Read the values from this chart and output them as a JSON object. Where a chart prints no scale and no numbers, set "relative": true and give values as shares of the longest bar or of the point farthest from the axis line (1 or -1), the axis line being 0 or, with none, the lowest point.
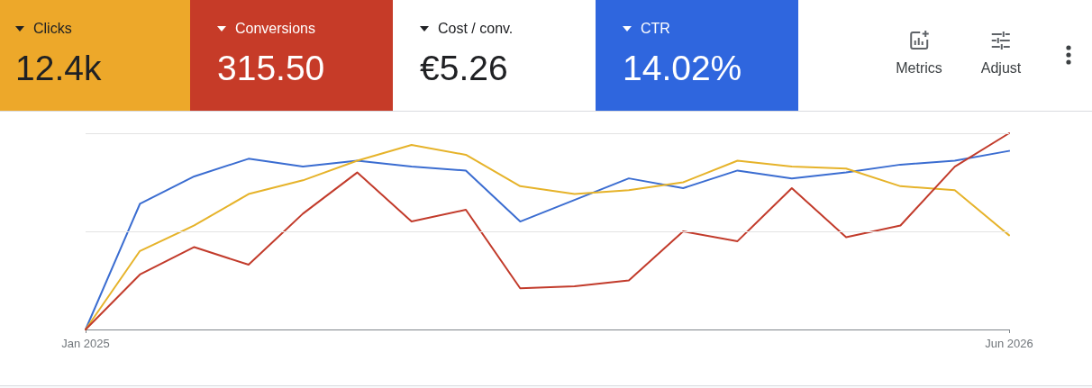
{
  "chart_data": [
    {
      "type": "other",
      "categories": [
        "Clicks",
        "Conversions",
        "Cost / conv.",
        "CTR"
      ],
      "value_labels": [
        "12.4k",
        "315.50",
        "€5.26",
        "14.02%"
      ],
      "colors": [
        "#eda82a",
        "#c63b28",
        "#ffffff",
        "#2f66de"
      ],
      "annotations": [
        "Metrics",
        "Adjust"
      ]
    },
    {
      "type": "line",
      "relative": true,
      "categories": [
        "Jan 2025",
        null,
        null,
        null,
        null,
        null,
        null,
        null,
        null,
        null,
        null,
        null,
        null,
        null,
        null,
        null,
        null,
        "Jun 2026"
      ],
      "series": [
        {
          "color": "#3b6dd1",
          "values": [
            0,
            0.64,
            0.78,
            0.87,
            0.83,
            0.86,
            0.83,
            0.81,
            0.55,
            0.66,
            0.77,
            0.72,
            0.81,
            0.77,
            0.8,
            0.84,
            0.86,
            0.91
          ]
        },
        {
          "color": "#e6b32a",
          "values": [
            0,
            0.4,
            0.53,
            0.69,
            0.76,
            0.86,
            0.94,
            0.89,
            0.73,
            0.69,
            0.71,
            0.75,
            0.86,
            0.83,
            0.82,
            0.73,
            0.71,
            0.48
          ]
        },
        {
          "color": "#c23b2b",
          "values": [
            0,
            0.28,
            0.42,
            0.33,
            0.59,
            0.8,
            0.55,
            0.61,
            0.21,
            0.22,
            0.25,
            0.5,
            0.45,
            0.72,
            0.47,
            0.53,
            0.83,
            1
          ]
        }
      ],
      "ref_lines": [
        {
          "axis": "y",
          "value": 0.5,
          "color": "#e3e3e3"
        },
        {
          "axis": "y",
          "value": 1,
          "color": "#e3e3e3"
        }
      ],
      "marker": "none",
      "line_style": "solid"
    }
  ]
}
